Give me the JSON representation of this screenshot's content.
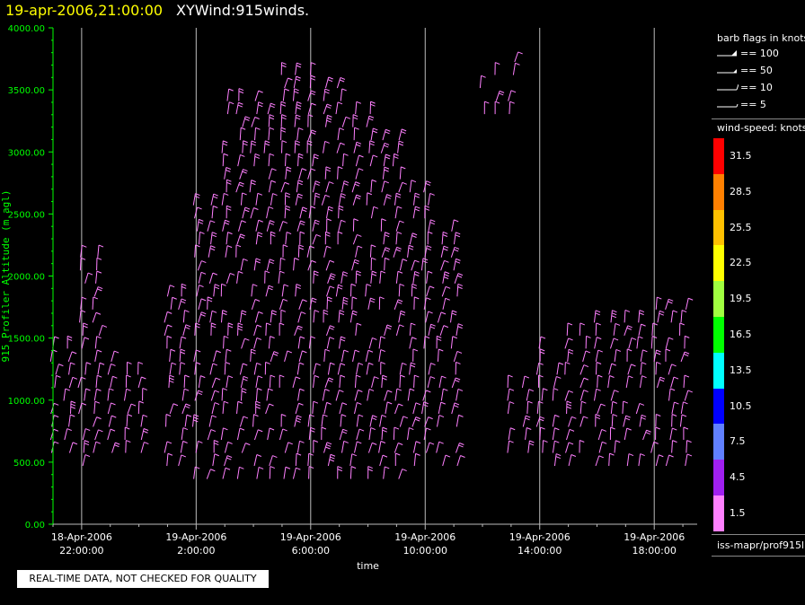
{
  "header": {
    "datetime": "19-apr-2006,21:00:00",
    "product": "XYWind:915winds."
  },
  "chart_data": {
    "type": "wind-barb time-height",
    "ylabel": "915 Profiler Altitude (m agl)",
    "xlabel": "time",
    "ylim": [
      0,
      4000
    ],
    "y_ticks": [
      "0.00",
      "500.00",
      "1000.00",
      "1500.00",
      "2000.00",
      "2500.00",
      "3000.00",
      "3500.00",
      "4000.00"
    ],
    "x_ticks": [
      {
        "date": "18-Apr-2006",
        "time": "22:00:00"
      },
      {
        "date": "19-Apr-2006",
        "time": "2:00:00"
      },
      {
        "date": "19-Apr-2006",
        "time": "6:00:00"
      },
      {
        "date": "19-Apr-2006",
        "time": "10:00:00"
      },
      {
        "date": "19-Apr-2006",
        "time": "14:00:00"
      },
      {
        "date": "19-Apr-2006",
        "time": "18:00:00"
      }
    ],
    "x_range_hours_from_first_tick": [
      -1,
      21.5
    ],
    "grid": "vertical lines at major time ticks",
    "profile_hours": [
      -1.0,
      -0.5,
      0.0,
      0.5,
      1.0,
      1.5,
      2.0,
      2.5,
      3.0,
      3.5,
      4.0,
      4.5,
      5.0,
      5.5,
      6.0,
      6.5,
      7.0,
      7.5,
      8.0,
      8.5,
      9.0,
      9.5,
      10.0,
      10.5,
      11.0,
      11.5,
      12.0,
      12.5,
      13.0,
      13.5,
      14.0,
      14.5,
      15.0,
      15.5,
      16.0,
      16.5,
      17.0,
      17.5,
      18.0,
      18.5,
      19.0,
      19.5,
      20.0,
      20.5,
      21.0
    ],
    "profiles": [
      {
        "hour_from_first_tick": -0.9,
        "bottom_m": 500,
        "top_m": 1450
      },
      {
        "hour_from_first_tick": 0.3,
        "bottom_m": 400,
        "top_m": 2250
      },
      {
        "hour_from_first_tick": 1.5,
        "bottom_m": 500,
        "top_m": 1400
      },
      {
        "hour_from_first_tick": 3.3,
        "bottom_m": 400,
        "top_m": 1900
      },
      {
        "hour_from_first_tick": 4.5,
        "bottom_m": 350,
        "top_m": 2600
      },
      {
        "hour_from_first_tick": 5.5,
        "bottom_m": 300,
        "top_m": 3500
      },
      {
        "hour_from_first_tick": 6.5,
        "bottom_m": 300,
        "top_m": 3400
      },
      {
        "hour_from_first_tick": 7.5,
        "bottom_m": 300,
        "top_m": 3700
      },
      {
        "hour_from_first_tick": 8.5,
        "bottom_m": 300,
        "top_m": 3600
      },
      {
        "hour_from_first_tick": 9.5,
        "bottom_m": 300,
        "top_m": 3400
      },
      {
        "hour_from_first_tick": 10.5,
        "bottom_m": 350,
        "top_m": 3100
      },
      {
        "hour_from_first_tick": 11.5,
        "bottom_m": 400,
        "top_m": 2700
      },
      {
        "hour_from_first_tick": 12.5,
        "bottom_m": 450,
        "top_m": 2400
      },
      {
        "hour_from_first_tick": 14.5,
        "bottom_m": 3300,
        "top_m": 3800
      },
      {
        "hour_from_first_tick": 15.5,
        "bottom_m": 500,
        "top_m": 1100
      },
      {
        "hour_from_first_tick": 16.5,
        "bottom_m": 450,
        "top_m": 1450
      },
      {
        "hour_from_first_tick": 17.5,
        "bottom_m": 450,
        "top_m": 1600
      },
      {
        "hour_from_first_tick": 18.5,
        "bottom_m": 450,
        "top_m": 1650
      },
      {
        "hour_from_first_tick": 19.5,
        "bottom_m": 450,
        "top_m": 1700
      },
      {
        "hour_from_first_tick": 20.5,
        "bottom_m": 450,
        "top_m": 1750
      }
    ]
  },
  "legend": {
    "barb_title": "barb flags in knots",
    "barbs": [
      {
        "kind": "pennant",
        "label": "== 100"
      },
      {
        "kind": "half-pennant",
        "label": "== 50"
      },
      {
        "kind": "full",
        "label": "== 10"
      },
      {
        "kind": "half",
        "label": "== 5"
      }
    ],
    "speed_title": "wind-speed: knots",
    "colorbar": [
      {
        "label": "31.5",
        "color": "#ff0000"
      },
      {
        "label": "28.5",
        "color": "#ff8000"
      },
      {
        "label": "25.5",
        "color": "#ffc000"
      },
      {
        "label": "22.5",
        "color": "#ffff00"
      },
      {
        "label": "19.5",
        "color": "#a0ff40"
      },
      {
        "label": "16.5",
        "color": "#00ff00"
      },
      {
        "label": "13.5",
        "color": "#00ffff"
      },
      {
        "label": "10.5",
        "color": "#0000ff"
      },
      {
        "label": "7.5",
        "color": "#6080ff"
      },
      {
        "label": "4.5",
        "color": "#a020f0"
      },
      {
        "label": "1.5",
        "color": "#ff80ff"
      }
    ],
    "source": "iss-mapr/prof915l"
  },
  "note": "REAL-TIME DATA, NOT CHECKED FOR QUALITY",
  "colors": {
    "axis": "#00ff00",
    "grid": "#bbbbbb",
    "tick_text": "#ffffff",
    "background": "#000000"
  }
}
